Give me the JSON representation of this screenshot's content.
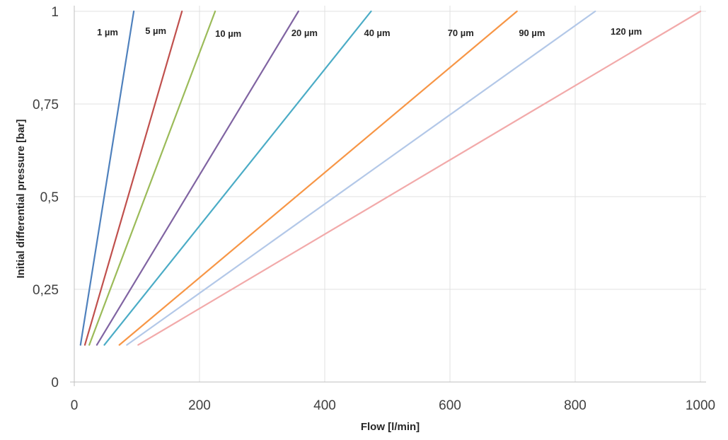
{
  "chart_data": {
    "type": "line",
    "title": "",
    "xlabel": "Flow [l/min]",
    "ylabel": "Initial differential pressure [bar]",
    "xlim": [
      0,
      1000
    ],
    "ylim": [
      0,
      1
    ],
    "grid": true,
    "x_ticks": [
      0,
      200,
      400,
      600,
      800,
      1000
    ],
    "x_tick_labels": [
      "0",
      "200",
      "400",
      "600",
      "800",
      "1000"
    ],
    "y_ticks": [
      0,
      0.25,
      0.5,
      0.75,
      1
    ],
    "y_tick_labels": [
      "0",
      "0,25",
      "0,5",
      "0,75",
      "1"
    ],
    "series": [
      {
        "name": "1 µm",
        "color": "#4f81bd",
        "x": [
          10,
          95
        ],
        "y": [
          0.1,
          1
        ]
      },
      {
        "name": "5 µm",
        "color": "#c0504d",
        "x": [
          17,
          172
        ],
        "y": [
          0.1,
          1
        ]
      },
      {
        "name": "10 µm",
        "color": "#9bbb59",
        "x": [
          24,
          225
        ],
        "y": [
          0.1,
          1
        ]
      },
      {
        "name": "20 µm",
        "color": "#8064a2",
        "x": [
          36,
          358
        ],
        "y": [
          0.1,
          1
        ]
      },
      {
        "name": "40 µm",
        "color": "#4bacc6",
        "x": [
          48,
          474
        ],
        "y": [
          0.1,
          1
        ]
      },
      {
        "name": "70 µm",
        "color": "#f79646",
        "x": [
          72,
          707
        ],
        "y": [
          0.1,
          1
        ]
      },
      {
        "name": "90 µm",
        "color": "#b3c8e8",
        "x": [
          84,
          832
        ],
        "y": [
          0.1,
          1
        ]
      },
      {
        "name": "120 µm",
        "color": "#f2aaaa",
        "x": [
          102,
          1000
        ],
        "y": [
          0.1,
          1
        ]
      }
    ]
  }
}
